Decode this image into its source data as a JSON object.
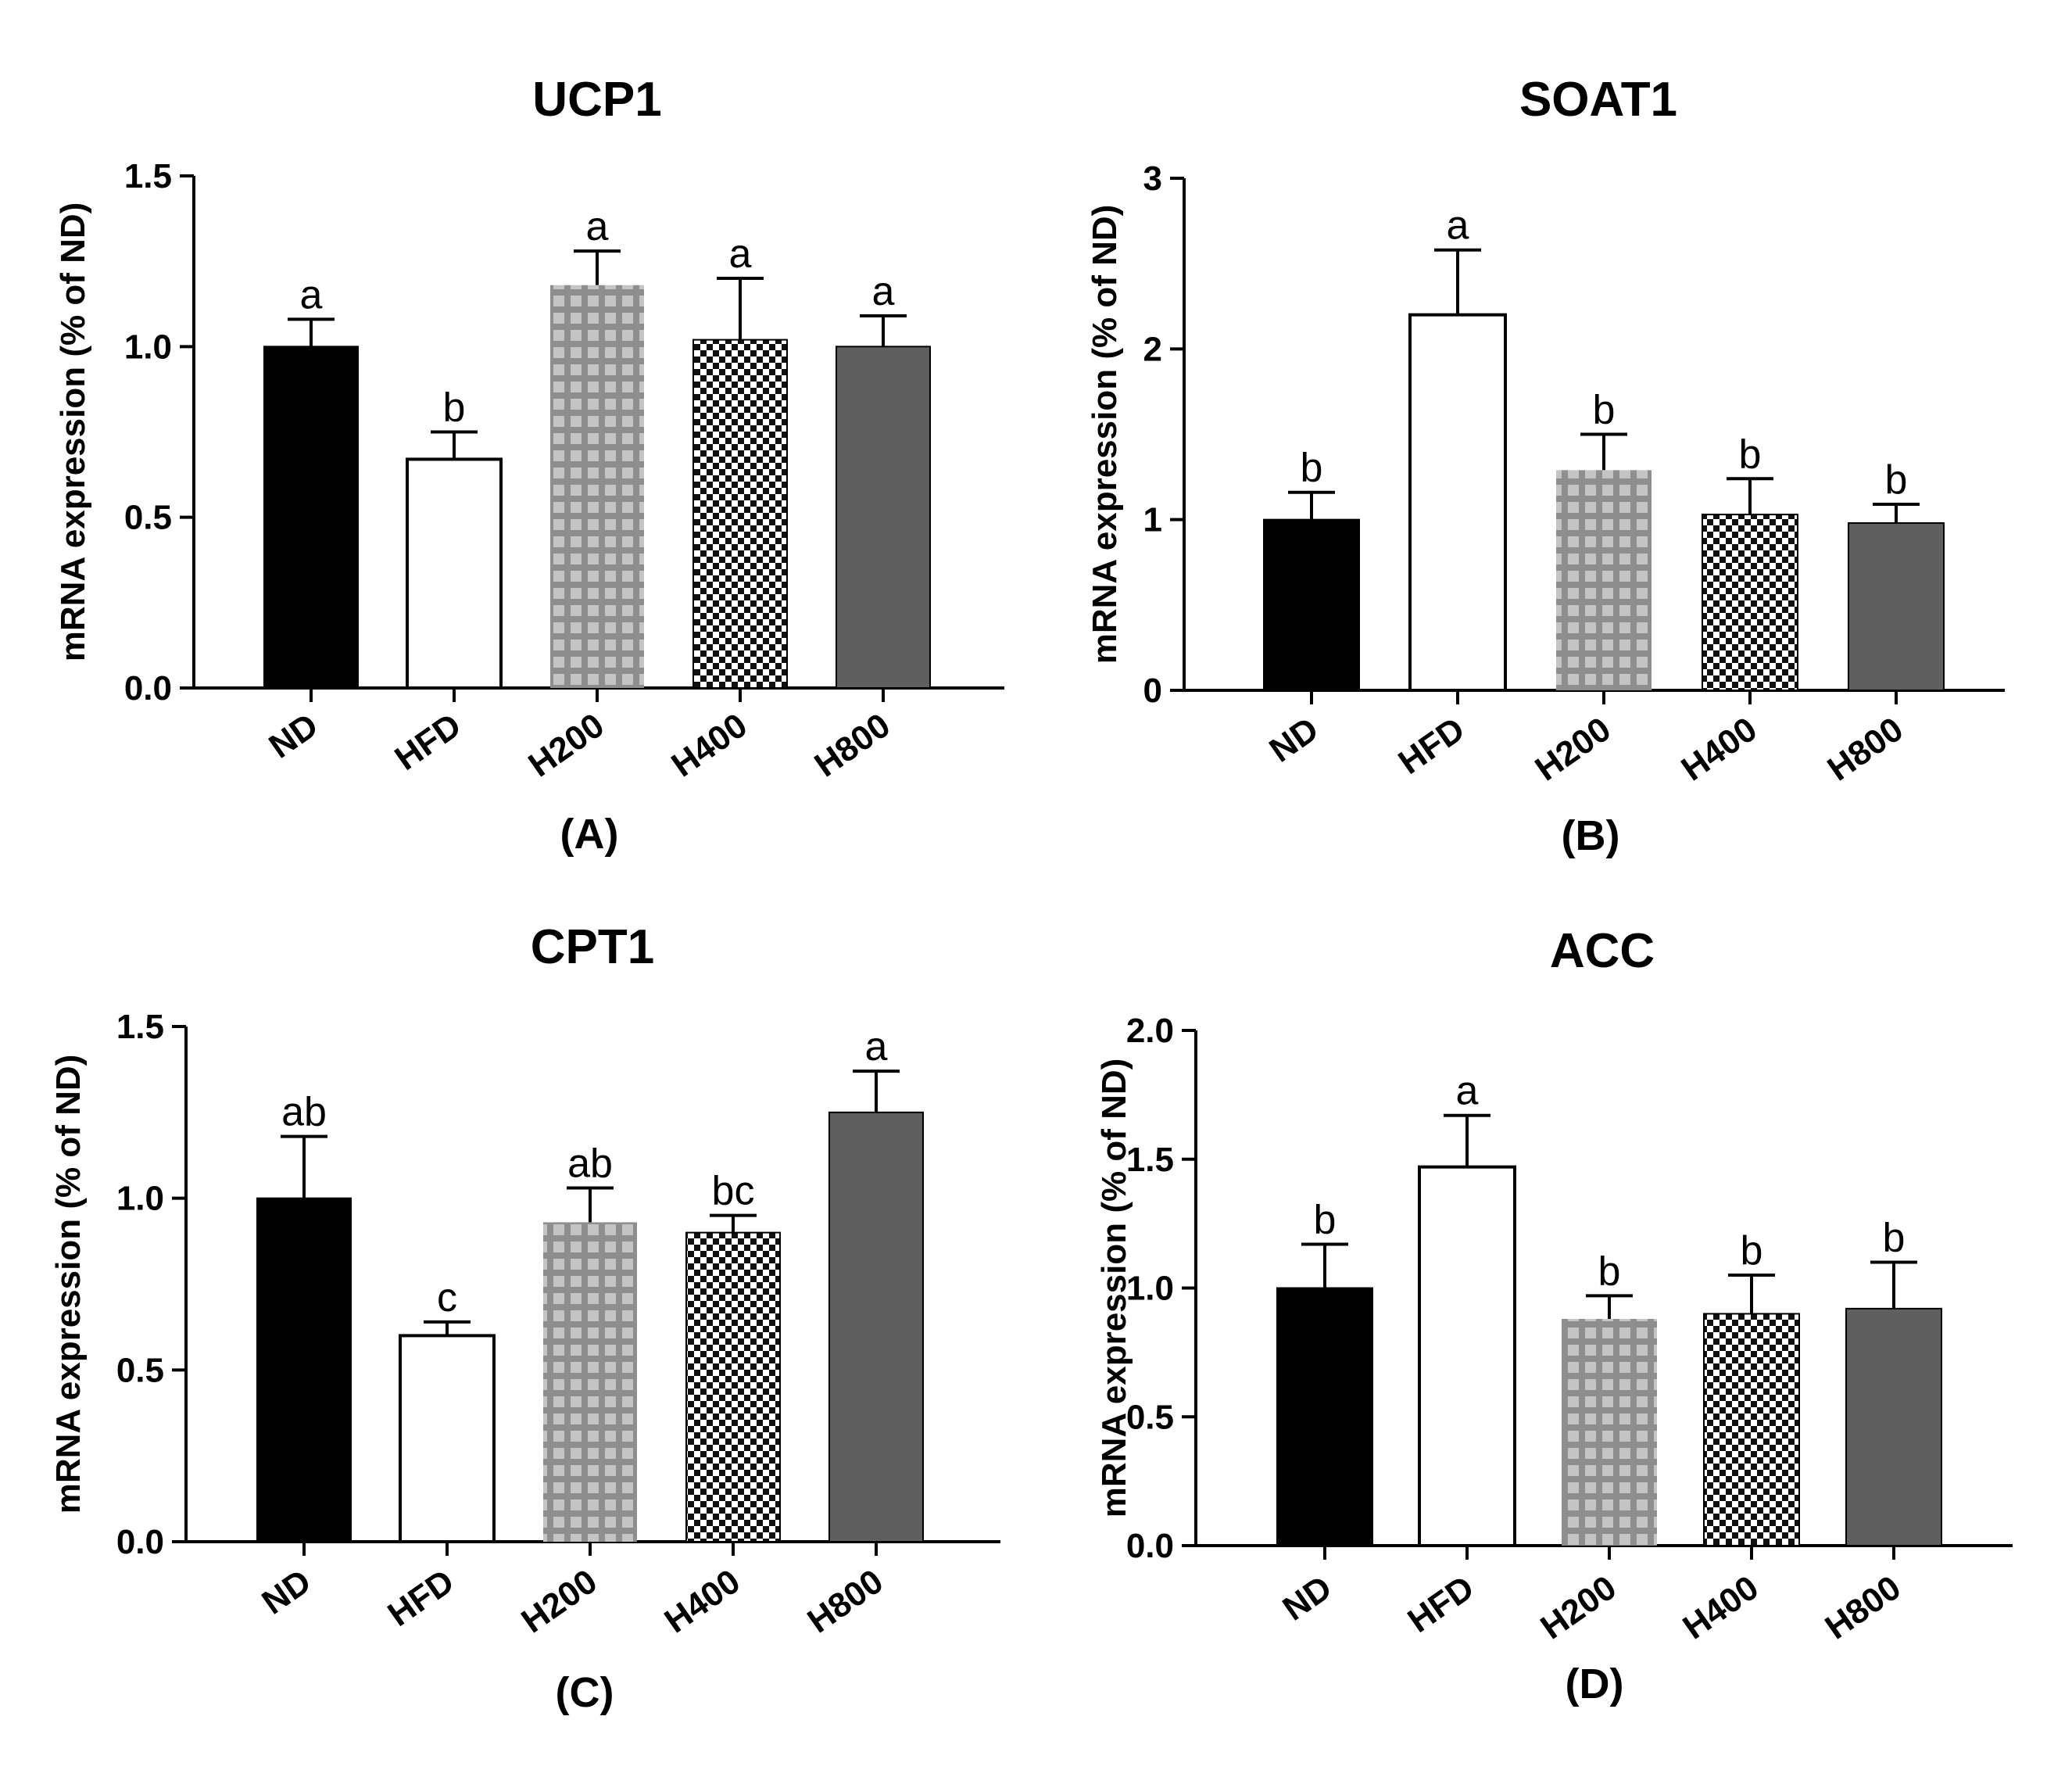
{
  "figure": {
    "chart_data": [
      {
        "type": "bar",
        "title": "UCP1",
        "panel_label": "(A)",
        "ylabel": "mRNA expression (% of ND)",
        "xlabel": "",
        "categories": [
          "ND",
          "HFD",
          "H200",
          "H400",
          "H800"
        ],
        "values": [
          1.0,
          0.67,
          1.18,
          1.02,
          1.0
        ],
        "errors": [
          0.08,
          0.08,
          0.1,
          0.18,
          0.09
        ],
        "significance": [
          "a",
          "b",
          "a",
          "a",
          "a"
        ],
        "ylim": [
          0,
          1.5
        ],
        "yticks": [
          0,
          0.5,
          1.0,
          1.5
        ],
        "ytick_labels": [
          "0.0",
          "0.5",
          "1.0",
          "1.5"
        ],
        "grid": false,
        "legend": "none"
      },
      {
        "type": "bar",
        "title": "SOAT1",
        "panel_label": "(B)",
        "ylabel": "mRNA expression (% of ND)",
        "xlabel": "",
        "categories": [
          "ND",
          "HFD",
          "H200",
          "H400",
          "H800"
        ],
        "values": [
          1.0,
          2.2,
          1.29,
          1.03,
          0.98
        ],
        "errors": [
          0.16,
          0.38,
          0.21,
          0.21,
          0.11
        ],
        "significance": [
          "b",
          "a",
          "b",
          "b",
          "b"
        ],
        "ylim": [
          0,
          3
        ],
        "yticks": [
          0,
          1,
          2,
          3
        ],
        "ytick_labels": [
          "0",
          "1",
          "2",
          "3"
        ],
        "grid": false,
        "legend": "none"
      },
      {
        "type": "bar",
        "title": "CPT1",
        "panel_label": "(C)",
        "ylabel": "mRNA expression (% of ND)",
        "xlabel": "",
        "categories": [
          "ND",
          "HFD",
          "H200",
          "H400",
          "H800"
        ],
        "values": [
          1.0,
          0.6,
          0.93,
          0.9,
          1.25
        ],
        "errors": [
          0.18,
          0.04,
          0.1,
          0.05,
          0.12
        ],
        "significance": [
          "ab",
          "c",
          "ab",
          "bc",
          "a"
        ],
        "ylim": [
          0,
          1.5
        ],
        "yticks": [
          0,
          0.5,
          1.0,
          1.5
        ],
        "ytick_labels": [
          "0.0",
          "0.5",
          "1.0",
          "1.5"
        ],
        "grid": false,
        "legend": "none"
      },
      {
        "type": "bar",
        "title": "ACC",
        "panel_label": "(D)",
        "ylabel": "mRNA expression (% of ND)",
        "xlabel": "",
        "categories": [
          "ND",
          "HFD",
          "H200",
          "H400",
          "H800"
        ],
        "values": [
          1.0,
          1.47,
          0.88,
          0.9,
          0.92
        ],
        "errors": [
          0.17,
          0.2,
          0.09,
          0.15,
          0.18
        ],
        "significance": [
          "b",
          "a",
          "b",
          "b",
          "b"
        ],
        "ylim": [
          0,
          2.0
        ],
        "yticks": [
          0,
          0.5,
          1.0,
          1.5,
          2.0
        ],
        "ytick_labels": [
          "0.0",
          "0.5",
          "1.0",
          "1.5",
          "2.0"
        ],
        "grid": false,
        "legend": "none"
      }
    ],
    "bar_styles": [
      {
        "category": "ND",
        "fill": "solid",
        "color": "#000000"
      },
      {
        "category": "HFD",
        "fill": "solid",
        "color": "#ffffff"
      },
      {
        "category": "H200",
        "fill": "light-grid",
        "color": "#a8a8a8"
      },
      {
        "category": "H400",
        "fill": "checkerboard",
        "color": "#111111"
      },
      {
        "category": "H800",
        "fill": "solid",
        "color": "#5f5f5f"
      }
    ]
  }
}
